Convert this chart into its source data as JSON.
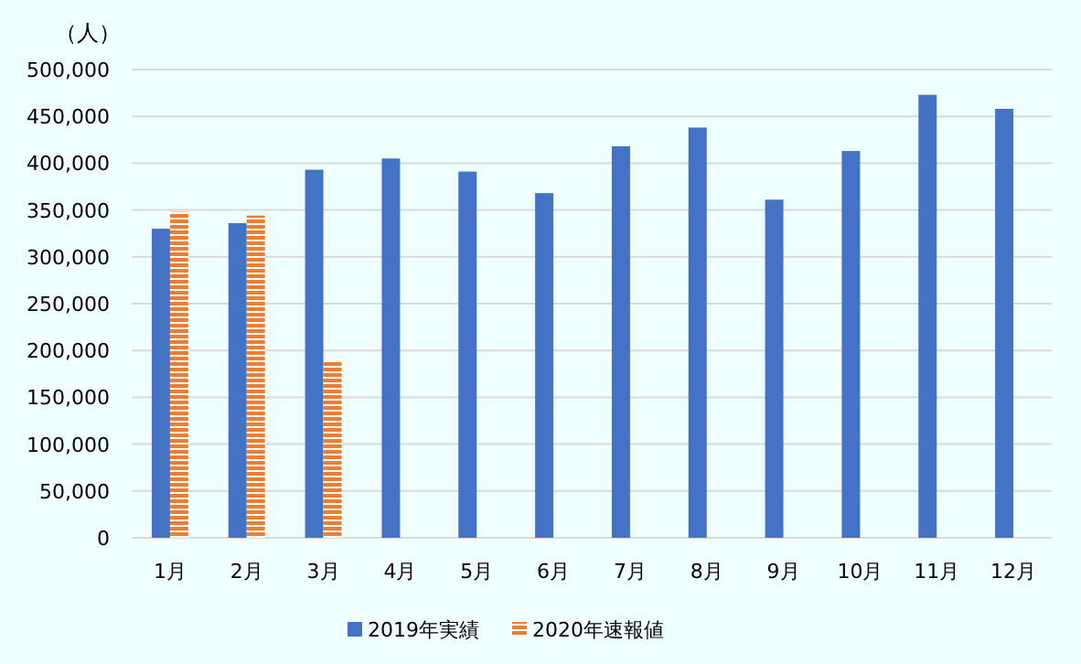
{
  "chart_data": {
    "type": "bar",
    "ylabel": "（人）",
    "categories": [
      "1月",
      "2月",
      "3月",
      "4月",
      "5月",
      "6月",
      "7月",
      "8月",
      "9月",
      "10月",
      "11月",
      "12月"
    ],
    "series": [
      {
        "name": "2019年実績",
        "color": "#4472c4",
        "values": [
          330000,
          336000,
          393000,
          405000,
          391000,
          368000,
          418000,
          438000,
          361000,
          413000,
          473000,
          458000
        ]
      },
      {
        "name": "2020年速報値",
        "color": "#ed7d31",
        "values": [
          348000,
          344000,
          188000,
          null,
          null,
          null,
          null,
          null,
          null,
          null,
          null,
          null
        ]
      }
    ],
    "ylim": [
      0,
      500000
    ],
    "yticks": [
      {
        "value": 0,
        "label": "0"
      },
      {
        "value": 50000,
        "label": "50,000"
      },
      {
        "value": 100000,
        "label": "100,000"
      },
      {
        "value": 150000,
        "label": "150,000"
      },
      {
        "value": 200000,
        "label": "200,000"
      },
      {
        "value": 250000,
        "label": "250,000"
      },
      {
        "value": 300000,
        "label": "300,000"
      },
      {
        "value": 350000,
        "label": "350,000"
      },
      {
        "value": 400000,
        "label": "400,000"
      },
      {
        "value": 450000,
        "label": "450,000"
      },
      {
        "value": 500000,
        "label": "500,000"
      }
    ],
    "grid": "y",
    "legend": "bottom"
  }
}
